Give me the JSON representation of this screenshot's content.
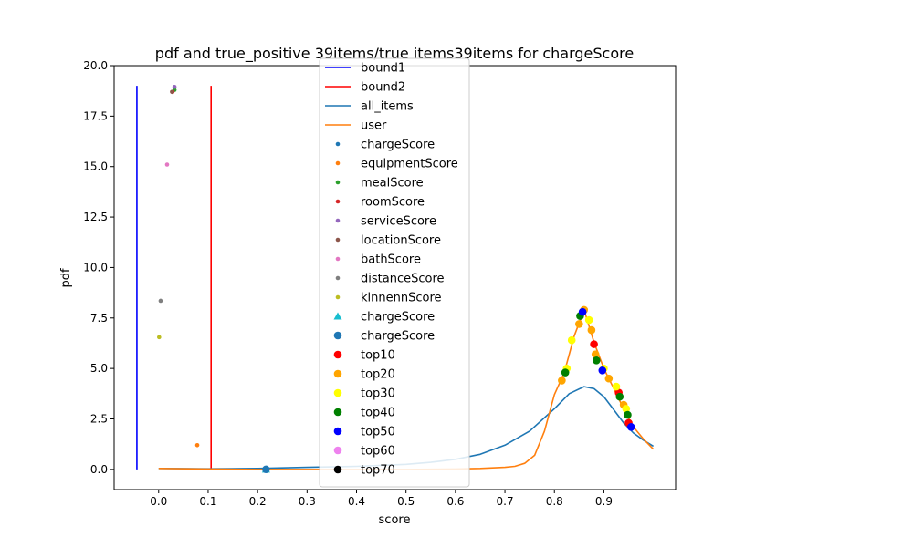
{
  "chart_data": {
    "type": "line",
    "title": "pdf and true_positive 39items/true items39items for chargeScore",
    "xlabel": "score",
    "ylabel": "pdf",
    "xlim": [
      -0.09,
      1.045
    ],
    "ylim": [
      -1.0,
      20.0
    ],
    "xticks": [
      0.0,
      0.1,
      0.2,
      0.3,
      0.4,
      0.5,
      0.6,
      0.7,
      0.8,
      0.9
    ],
    "xtick_labels": [
      "0.0",
      "0.1",
      "0.2",
      "0.3",
      "0.4",
      "0.5",
      "0.6",
      "0.7",
      "0.8",
      "0.9"
    ],
    "yticks": [
      0.0,
      2.5,
      5.0,
      7.5,
      10.0,
      12.5,
      15.0,
      17.5,
      20.0
    ],
    "ytick_labels": [
      "0.0",
      "2.5",
      "5.0",
      "7.5",
      "10.0",
      "12.5",
      "15.0",
      "17.5",
      "20.0"
    ],
    "grid": false,
    "legend_position": "upper-center",
    "vlines": [
      {
        "name": "bound1",
        "x": -0.044,
        "ymin": 0.0,
        "ymax": 19.0,
        "color": "#0000ff"
      },
      {
        "name": "bound2",
        "x": 0.106,
        "ymin": 0.0,
        "ymax": 19.0,
        "color": "#ff0000"
      }
    ],
    "series": [
      {
        "name": "all_items",
        "color": "#1f77b4",
        "x": [
          0.0,
          0.1,
          0.2,
          0.3,
          0.4,
          0.5,
          0.55,
          0.6,
          0.65,
          0.7,
          0.75,
          0.8,
          0.83,
          0.86,
          0.88,
          0.9,
          0.92,
          0.94,
          0.96,
          0.98,
          1.0
        ],
        "y": [
          0.05,
          0.03,
          0.05,
          0.1,
          0.15,
          0.25,
          0.35,
          0.5,
          0.75,
          1.2,
          1.9,
          3.0,
          3.75,
          4.1,
          4.0,
          3.6,
          2.95,
          2.3,
          1.8,
          1.45,
          1.15
        ]
      },
      {
        "name": "user",
        "color": "#ff7f0e",
        "x": [
          0.0,
          0.1,
          0.2,
          0.3,
          0.4,
          0.5,
          0.6,
          0.65,
          0.7,
          0.72,
          0.74,
          0.76,
          0.78,
          0.8,
          0.82,
          0.84,
          0.86,
          0.88,
          0.9,
          0.92,
          0.94,
          0.96,
          0.98,
          1.0
        ],
        "y": [
          0.05,
          0.02,
          0.0,
          0.0,
          0.0,
          0.0,
          0.02,
          0.05,
          0.1,
          0.15,
          0.3,
          0.7,
          1.9,
          3.7,
          4.8,
          6.6,
          7.9,
          6.3,
          5.0,
          4.0,
          3.0,
          2.1,
          1.5,
          1.0
        ]
      }
    ],
    "scatter_small": [
      {
        "name": "chargeScore",
        "color": "#1f77b4",
        "x": 0.217,
        "y": 0.05
      },
      {
        "name": "equipmentScore",
        "color": "#ff7f0e",
        "x": 0.078,
        "y": 1.2
      },
      {
        "name": "mealScore",
        "color": "#2ca02c",
        "x": 0.032,
        "y": 18.8
      },
      {
        "name": "roomScore",
        "color": "#d62728",
        "x": 0.028,
        "y": 18.7
      },
      {
        "name": "serviceScore",
        "color": "#9467bd",
        "x": 0.032,
        "y": 18.95
      },
      {
        "name": "locationScore",
        "color": "#8c564b",
        "x": 0.027,
        "y": 18.7
      },
      {
        "name": "bathScore",
        "color": "#e377c2",
        "x": 0.017,
        "y": 15.1
      },
      {
        "name": "distanceScore",
        "color": "#7f7f7f",
        "x": 0.004,
        "y": 8.35
      },
      {
        "name": "kinnennScore",
        "color": "#bcbd22",
        "x": 0.001,
        "y": 6.55
      }
    ],
    "triangle_marker": {
      "name": "chargeScore",
      "color": "#17becf",
      "x": 0.217,
      "y": 0.0
    },
    "big_marker": {
      "name": "chargeScore",
      "color": "#1f77b4",
      "x": 0.217,
      "y": 0.0
    },
    "top_groups": [
      {
        "name": "top10",
        "color": "#ff0000",
        "points": [
          [
            0.88,
            6.2
          ],
          [
            0.93,
            3.8
          ],
          [
            0.95,
            2.3
          ]
        ]
      },
      {
        "name": "top20",
        "color": "#ffa500",
        "points": [
          [
            0.85,
            7.2
          ],
          [
            0.86,
            7.9
          ],
          [
            0.875,
            6.9
          ],
          [
            0.883,
            5.7
          ],
          [
            0.91,
            4.5
          ],
          [
            0.94,
            3.2
          ],
          [
            0.815,
            4.4
          ]
        ]
      },
      {
        "name": "top30",
        "color": "#ffff00",
        "points": [
          [
            0.835,
            6.4
          ],
          [
            0.87,
            7.4
          ],
          [
            0.9,
            5.0
          ],
          [
            0.925,
            4.1
          ],
          [
            0.945,
            3.0
          ],
          [
            0.825,
            5.0
          ]
        ]
      },
      {
        "name": "top40",
        "color": "#008000",
        "points": [
          [
            0.822,
            4.8
          ],
          [
            0.852,
            7.6
          ],
          [
            0.885,
            5.4
          ],
          [
            0.932,
            3.6
          ],
          [
            0.948,
            2.7
          ]
        ]
      },
      {
        "name": "top50",
        "color": "#0000ff",
        "points": [
          [
            0.857,
            7.8
          ],
          [
            0.897,
            4.9
          ],
          [
            0.955,
            2.1
          ]
        ]
      },
      {
        "name": "top60",
        "color": "#ee82ee",
        "points": []
      },
      {
        "name": "top70",
        "color": "#000000",
        "points": []
      }
    ]
  }
}
